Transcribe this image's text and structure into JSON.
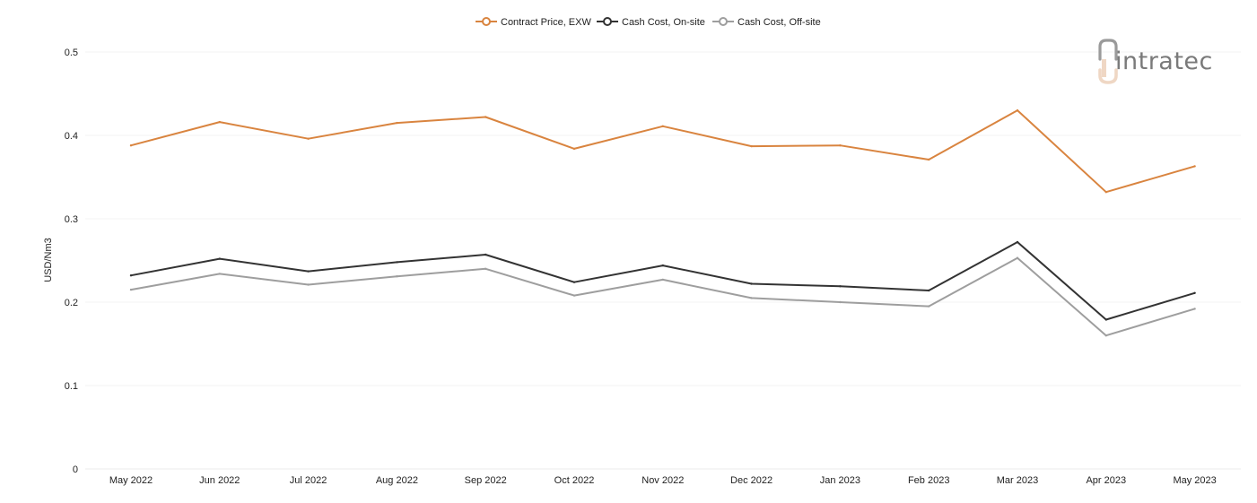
{
  "logo": {
    "text": "intratec"
  },
  "chart_data": {
    "type": "line",
    "title": "",
    "xlabel": "",
    "ylabel": "USD/Nm3",
    "ylim": [
      0,
      0.5
    ],
    "yticks": [
      0,
      0.1,
      0.2,
      0.3,
      0.4,
      0.5
    ],
    "ytick_labels": [
      "0",
      "0.1",
      "0.2",
      "0.3",
      "0.4",
      "0.5"
    ],
    "grid": true,
    "legend_position": "top-center",
    "categories": [
      "May 2022",
      "Jun 2022",
      "Jul 2022",
      "Aug 2022",
      "Sep 2022",
      "Oct 2022",
      "Nov 2022",
      "Dec 2022",
      "Jan 2023",
      "Feb 2023",
      "Mar 2023",
      "Apr 2023",
      "May 2023"
    ],
    "series": [
      {
        "name": "Contract Price, EXW",
        "color": "#d9843f",
        "values": [
          0.388,
          0.416,
          0.396,
          0.415,
          0.422,
          0.384,
          0.411,
          0.387,
          0.388,
          0.371,
          0.43,
          0.332,
          0.363
        ]
      },
      {
        "name": "Cash Cost, On-site",
        "color": "#333333",
        "values": [
          0.232,
          0.252,
          0.237,
          0.248,
          0.257,
          0.224,
          0.244,
          0.222,
          0.219,
          0.214,
          0.272,
          0.179,
          0.211
        ]
      },
      {
        "name": "Cash Cost, Off-site",
        "color": "#9e9e9e",
        "values": [
          0.215,
          0.234,
          0.221,
          0.231,
          0.24,
          0.208,
          0.227,
          0.205,
          0.2,
          0.195,
          0.253,
          0.16,
          0.192
        ]
      }
    ]
  }
}
